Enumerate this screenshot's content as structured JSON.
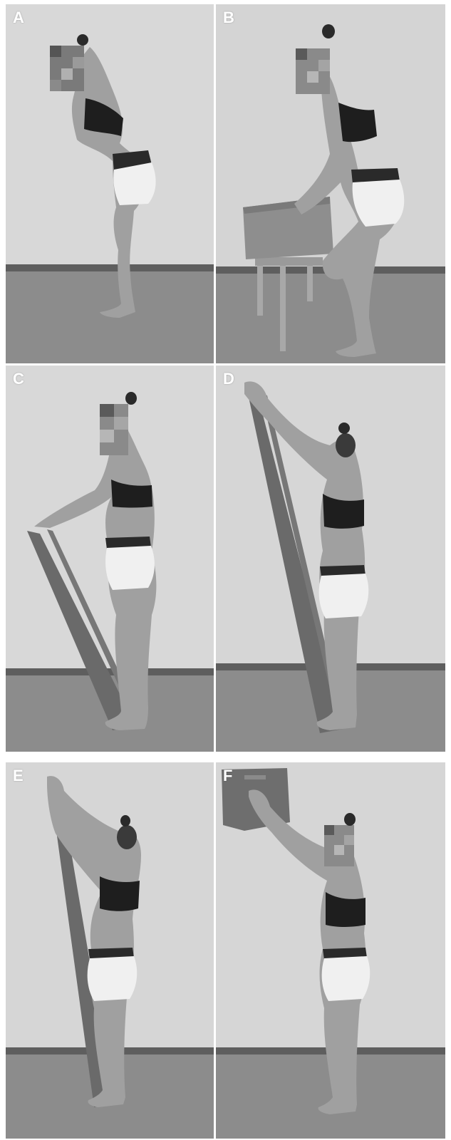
{
  "panels": [
    {
      "label": "A",
      "pose": "standing-bent-forward-arms-crossed"
    },
    {
      "label": "B",
      "pose": "squat-lifting-box-from-stool"
    },
    {
      "label": "C",
      "pose": "standing-band-arms-forward-low"
    },
    {
      "label": "D",
      "pose": "standing-band-arms-overhead"
    },
    {
      "label": "E",
      "pose": "standing-band-arms-overhead-leaning"
    },
    {
      "label": "F",
      "pose": "standing-pushing-wall-box-overhead"
    }
  ],
  "colors": {
    "wall": "#d6d6d6",
    "floor": "#8a8a8a",
    "baseboard": "#5e5e5e",
    "skin": "#a3a3a3",
    "top": "#1e1e1e",
    "shorts": "#f2f2f2",
    "band": "#6a6a6a",
    "label": "#ffffff"
  }
}
